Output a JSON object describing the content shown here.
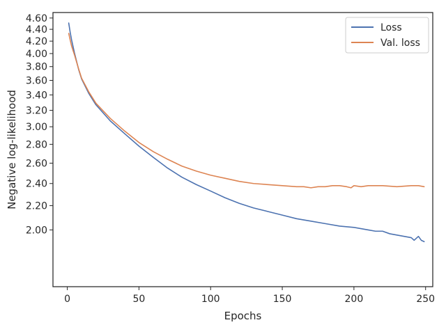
{
  "chart_data": {
    "type": "line",
    "xlabel": "Epochs",
    "ylabel": "Negative log-likelihood",
    "xlim": [
      -10,
      255
    ],
    "ylim": [
      1.6,
      4.7
    ],
    "y_scale": "log",
    "x_ticks": [
      0,
      50,
      100,
      150,
      200,
      250
    ],
    "x_tick_labels": [
      "0",
      "50",
      "100",
      "150",
      "200",
      "250"
    ],
    "y_ticks": [
      2.0,
      2.2,
      2.4,
      2.6,
      2.8,
      3.0,
      3.2,
      3.4,
      3.6,
      3.8,
      4.0,
      4.2,
      4.4,
      4.6
    ],
    "y_tick_labels": [
      "2.00",
      "2.20",
      "2.40",
      "2.60",
      "2.80",
      "3.00",
      "3.20",
      "3.40",
      "3.60",
      "3.80",
      "4.00",
      "4.20",
      "4.40",
      "4.60"
    ],
    "grid": false,
    "legend_position": "top-right",
    "series": [
      {
        "name": "Loss",
        "color": "#4c72b0",
        "x": [
          1,
          2,
          3,
          5,
          8,
          10,
          15,
          20,
          30,
          40,
          50,
          60,
          70,
          80,
          90,
          100,
          110,
          120,
          130,
          140,
          150,
          160,
          170,
          180,
          190,
          200,
          210,
          215,
          220,
          225,
          230,
          235,
          240,
          242,
          245,
          247,
          249
        ],
        "values": [
          4.51,
          4.35,
          4.22,
          4.01,
          3.75,
          3.62,
          3.42,
          3.27,
          3.07,
          2.92,
          2.78,
          2.66,
          2.55,
          2.46,
          2.39,
          2.33,
          2.27,
          2.22,
          2.18,
          2.15,
          2.12,
          2.09,
          2.07,
          2.05,
          2.03,
          2.02,
          2.0,
          1.99,
          1.99,
          1.97,
          1.96,
          1.95,
          1.94,
          1.92,
          1.95,
          1.92,
          1.91
        ]
      },
      {
        "name": "Val. loss",
        "color": "#dd8452",
        "x": [
          1,
          2,
          3,
          5,
          8,
          10,
          15,
          20,
          30,
          40,
          50,
          60,
          70,
          80,
          90,
          100,
          110,
          120,
          130,
          140,
          150,
          160,
          165,
          170,
          175,
          180,
          185,
          190,
          195,
          198,
          200,
          205,
          210,
          220,
          230,
          240,
          245,
          249
        ],
        "values": [
          4.33,
          4.22,
          4.12,
          3.98,
          3.76,
          3.63,
          3.44,
          3.29,
          3.1,
          2.95,
          2.82,
          2.72,
          2.64,
          2.57,
          2.52,
          2.48,
          2.45,
          2.42,
          2.4,
          2.39,
          2.38,
          2.37,
          2.37,
          2.36,
          2.37,
          2.37,
          2.38,
          2.38,
          2.37,
          2.36,
          2.38,
          2.37,
          2.38,
          2.38,
          2.37,
          2.38,
          2.38,
          2.37
        ]
      }
    ]
  }
}
